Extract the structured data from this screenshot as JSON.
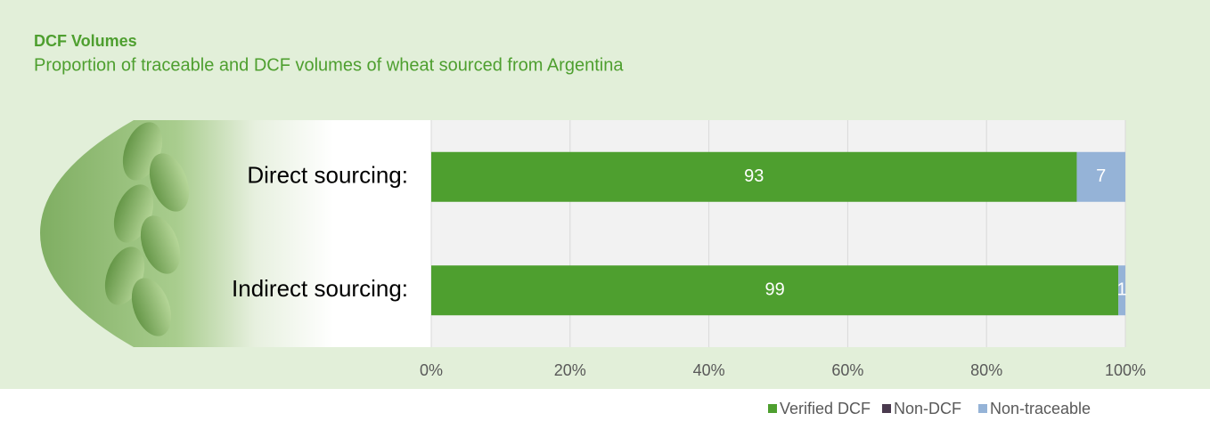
{
  "chart_data": {
    "type": "stacked-bar-horizontal",
    "title": "DCF Volumes",
    "subtitle": "Proportion of traceable and DCF volumes of wheat sourced from Argentina",
    "categories": [
      "Direct sourcing:",
      "Indirect sourcing:"
    ],
    "series": [
      {
        "name": "Verified DCF",
        "color": "#4e9f2f",
        "values": [
          93,
          99
        ]
      },
      {
        "name": "Non-DCF",
        "color": "#4a3a4e",
        "values": [
          0,
          0
        ]
      },
      {
        "name": "Non-traceable",
        "color": "#95b3d7",
        "values": [
          7,
          1
        ]
      }
    ],
    "xlim": [
      0,
      100
    ],
    "xticks": [
      {
        "value": 0,
        "label": "0%"
      },
      {
        "value": 20,
        "label": "20%"
      },
      {
        "value": 40,
        "label": "40%"
      },
      {
        "value": 60,
        "label": "60%"
      },
      {
        "value": 80,
        "label": "80%"
      },
      {
        "value": 100,
        "label": "100%"
      }
    ],
    "grid": true,
    "legend": "bottom-right"
  }
}
